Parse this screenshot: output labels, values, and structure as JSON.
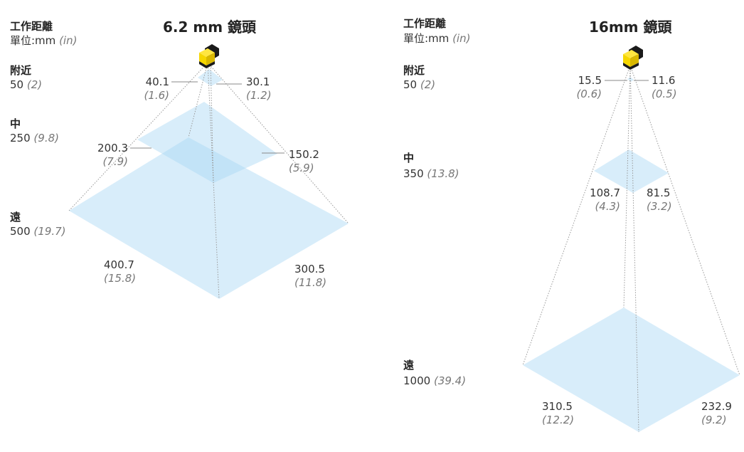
{
  "colors": {
    "plane": "#a9d8f5",
    "camera_body": "#f5d600",
    "camera_dark": "#1a1a1a",
    "guide": "#999999"
  },
  "icons": [
    "camera-icon"
  ],
  "left": {
    "title": "6.2 mm 鏡頭",
    "heading": "工作距離",
    "unit_label": "單位:mm",
    "unit_in": "(in)",
    "near": {
      "label": "附近",
      "mm": "50",
      "in": "(2)",
      "w_mm": "40.1",
      "w_in": "(1.6)",
      "h_mm": "30.1",
      "h_in": "(1.2)"
    },
    "mid": {
      "label": "中",
      "mm": "250",
      "in": "(9.8)",
      "w_mm": "200.3",
      "w_in": "(7.9)",
      "h_mm": "150.2",
      "h_in": "(5.9)"
    },
    "far": {
      "label": "遠",
      "mm": "500",
      "in": "(19.7)",
      "w_mm": "400.7",
      "w_in": "(15.8)",
      "h_mm": "300.5",
      "h_in": "(11.8)"
    }
  },
  "right": {
    "title": "16mm 鏡頭",
    "heading": "工作距離",
    "unit_label": "單位:mm",
    "unit_in": "(in)",
    "near": {
      "label": "附近",
      "mm": "50",
      "in": "(2)",
      "w_mm": "15.5",
      "w_in": "(0.6)",
      "h_mm": "11.6",
      "h_in": "(0.5)"
    },
    "mid": {
      "label": "中",
      "mm": "350",
      "in": "(13.8)",
      "w_mm": "108.7",
      "w_in": "(4.3)",
      "h_mm": "81.5",
      "h_in": "(3.2)"
    },
    "far": {
      "label": "遠",
      "mm": "1000",
      "in": "(39.4)",
      "w_mm": "310.5",
      "w_in": "(12.2)",
      "h_mm": "232.9",
      "h_in": "(9.2)"
    }
  }
}
